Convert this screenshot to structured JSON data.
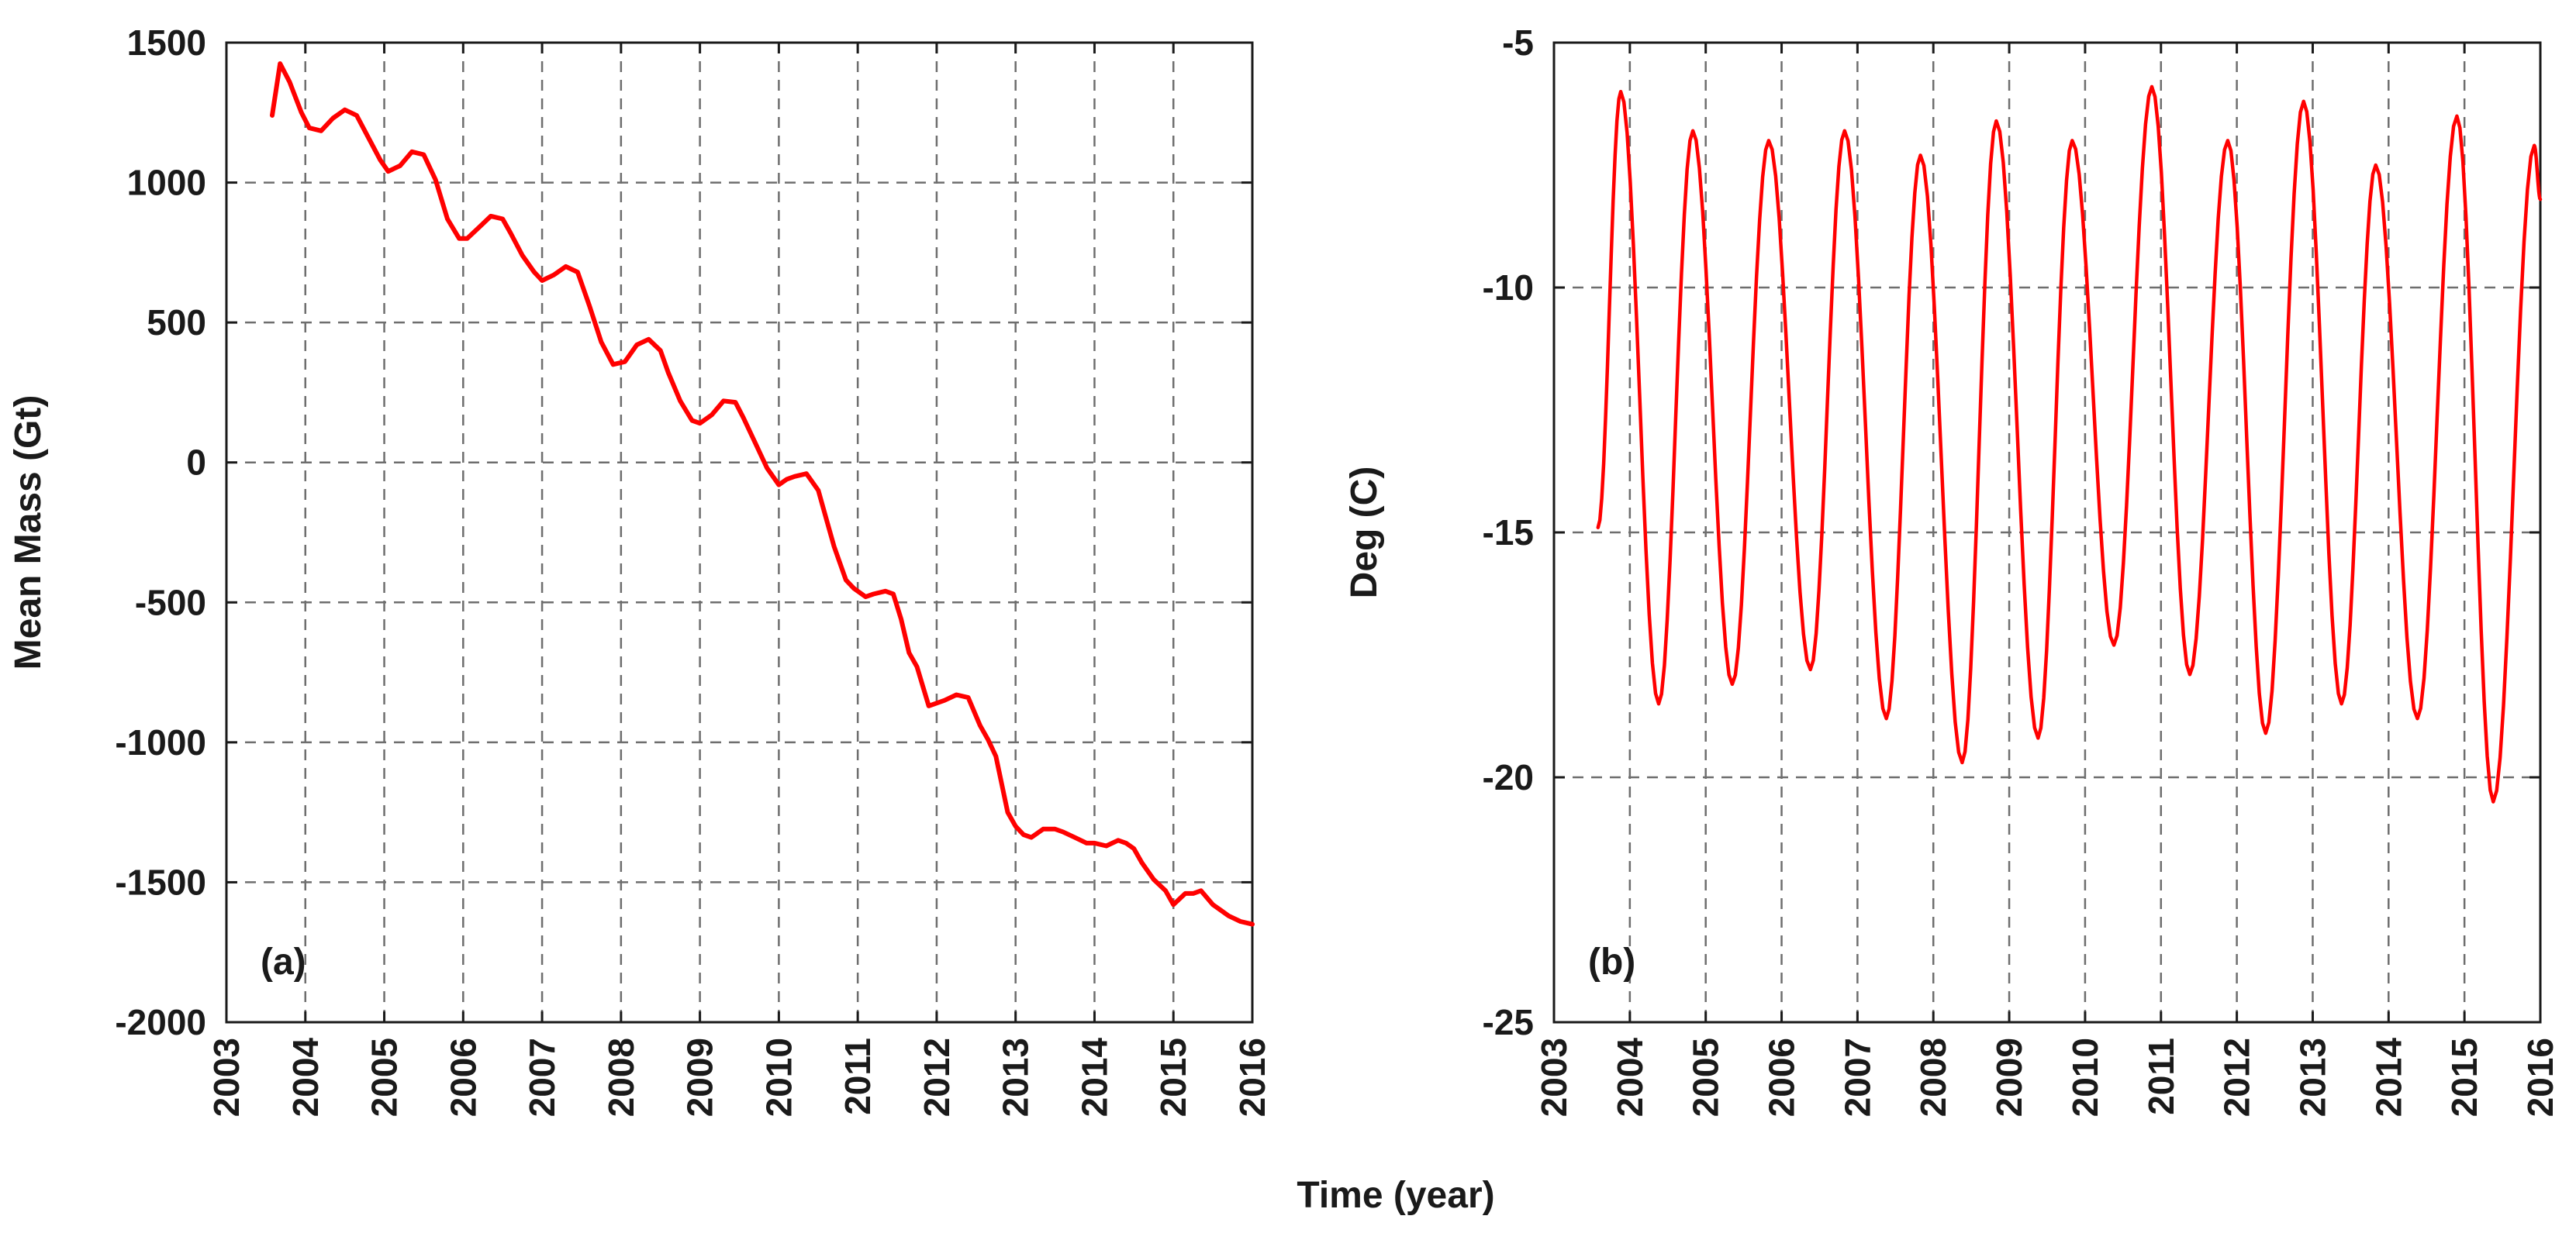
{
  "figure": {
    "xlabel": "Time (year)"
  },
  "colors": {
    "series": "#ff0000",
    "axis": "#1a1a1a",
    "grid": "#6e6e6e"
  },
  "chart_data": [
    {
      "type": "line",
      "panel_label": "(a)",
      "title": "",
      "xlabel": "Time (year)",
      "ylabel": "Mean Mass (Gt)",
      "xlim": [
        2003,
        2016
      ],
      "ylim": [
        -2000,
        1500
      ],
      "xticks": [
        2003,
        2004,
        2005,
        2006,
        2007,
        2008,
        2009,
        2010,
        2011,
        2012,
        2013,
        2014,
        2015,
        2016
      ],
      "yticks": [
        -2000,
        -1500,
        -1000,
        -500,
        0,
        500,
        1000,
        1500
      ],
      "grid": true,
      "series": [
        {
          "name": "Mean Mass",
          "x": [
            2003.58,
            2003.68,
            2003.8,
            2003.95,
            2004.05,
            2004.2,
            2004.35,
            2004.5,
            2004.65,
            2004.8,
            2004.95,
            2005.05,
            2005.2,
            2005.35,
            2005.5,
            2005.65,
            2005.8,
            2005.95,
            2006.05,
            2006.2,
            2006.35,
            2006.5,
            2006.6,
            2006.75,
            2006.9,
            2007.0,
            2007.15,
            2007.3,
            2007.45,
            2007.6,
            2007.75,
            2007.9,
            2008.05,
            2008.2,
            2008.35,
            2008.5,
            2008.6,
            2008.75,
            2008.9,
            2009.0,
            2009.15,
            2009.3,
            2009.45,
            2009.55,
            2009.7,
            2009.85,
            2010.0,
            2010.1,
            2010.2,
            2010.35,
            2010.5,
            2010.6,
            2010.7,
            2010.85,
            2010.95,
            2011.1,
            2011.2,
            2011.35,
            2011.45,
            2011.55,
            2011.65,
            2011.75,
            2011.9,
            2012.0,
            2012.1,
            2012.25,
            2012.4,
            2012.55,
            2012.65,
            2012.75,
            2012.9,
            2013.0,
            2013.1,
            2013.2,
            2013.35,
            2013.5,
            2013.6,
            2013.75,
            2013.9,
            2014.0,
            2014.15,
            2014.3,
            2014.4,
            2014.5,
            2014.6,
            2014.75,
            2014.9,
            2015.0,
            2015.15,
            2015.25,
            2015.35,
            2015.5,
            2015.6,
            2015.7,
            2015.85,
            2016.0
          ],
          "y": [
            1240,
            1425,
            1360,
            1250,
            1195,
            1185,
            1230,
            1260,
            1240,
            1160,
            1080,
            1040,
            1060,
            1110,
            1100,
            1010,
            870,
            800,
            800,
            840,
            880,
            870,
            820,
            740,
            680,
            650,
            670,
            700,
            680,
            560,
            430,
            350,
            360,
            420,
            440,
            400,
            320,
            220,
            150,
            140,
            170,
            220,
            215,
            160,
            70,
            -20,
            -80,
            -60,
            -50,
            -40,
            -100,
            -200,
            -300,
            -420,
            -450,
            -480,
            -470,
            -460,
            -470,
            -560,
            -680,
            -730,
            -870,
            -860,
            -850,
            -830,
            -840,
            -940,
            -990,
            -1050,
            -1250,
            -1300,
            -1330,
            -1340,
            -1310,
            -1310,
            -1320,
            -1340,
            -1360,
            -1360,
            -1370,
            -1350,
            -1360,
            -1380,
            -1430,
            -1490,
            -1530,
            -1580,
            -1540,
            -1540,
            -1530,
            -1580,
            -1600,
            -1620,
            -1640,
            -1650
          ]
        }
      ]
    },
    {
      "type": "line",
      "panel_label": "(b)",
      "title": "",
      "xlabel": "Time (year)",
      "ylabel": "Deg (C)",
      "xlim": [
        2003,
        2016
      ],
      "ylim": [
        -25,
        -5
      ],
      "xticks": [
        2003,
        2004,
        2005,
        2006,
        2007,
        2008,
        2009,
        2010,
        2011,
        2012,
        2013,
        2014,
        2015,
        2016
      ],
      "yticks": [
        -25,
        -20,
        -15,
        -10,
        -5
      ],
      "grid": true,
      "seasonal": {
        "start": 2003.58,
        "start_value": -14.9,
        "end": 2016.0,
        "end_value": -8.2,
        "peaks": [
          [
            2003.88,
            -6.0
          ],
          [
            2004.83,
            -6.8
          ],
          [
            2005.83,
            -7.0
          ],
          [
            2006.83,
            -6.8
          ],
          [
            2007.83,
            -7.3
          ],
          [
            2008.83,
            -6.6
          ],
          [
            2009.83,
            -7.0
          ],
          [
            2010.88,
            -5.9
          ],
          [
            2011.88,
            -7.0
          ],
          [
            2012.88,
            -6.2
          ],
          [
            2013.83,
            -7.5
          ],
          [
            2014.9,
            -6.5
          ],
          [
            2015.92,
            -7.1
          ]
        ],
        "troughs": [
          [
            2004.38,
            -18.5
          ],
          [
            2005.35,
            -18.1
          ],
          [
            2006.38,
            -17.8
          ],
          [
            2007.38,
            -18.8
          ],
          [
            2008.38,
            -19.7
          ],
          [
            2009.38,
            -19.2
          ],
          [
            2010.38,
            -17.3
          ],
          [
            2011.38,
            -17.9
          ],
          [
            2012.38,
            -19.1
          ],
          [
            2013.38,
            -18.5
          ],
          [
            2014.38,
            -18.8
          ],
          [
            2015.38,
            -20.5
          ]
        ]
      }
    }
  ]
}
